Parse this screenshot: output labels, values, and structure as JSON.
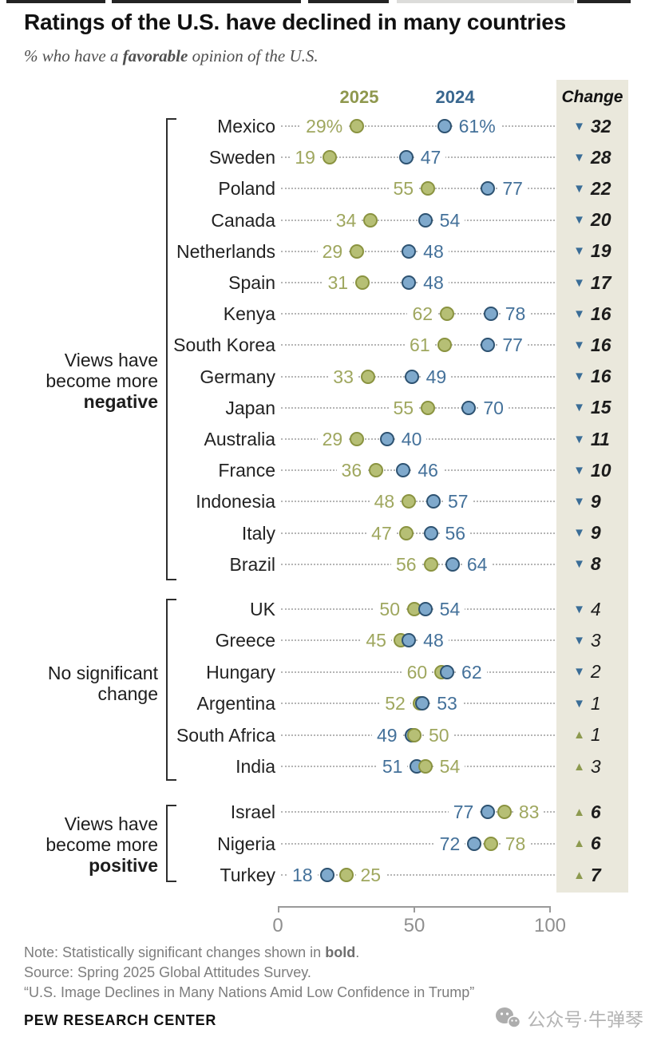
{
  "chart_data": {
    "type": "dumbbell-dot",
    "title": "Ratings of the U.S. have declined in many countries",
    "subtitle": {
      "prefix": "% who have a ",
      "bold": "favorable",
      "suffix": " opinion of the U.S."
    },
    "columns": {
      "y2025": "2025",
      "y2024": "2024",
      "change": "Change"
    },
    "axis": {
      "min": 0,
      "mid": 50,
      "max": 100,
      "labels": {
        "min": "0",
        "mid": "50",
        "max": "100"
      }
    },
    "colors": {
      "dot_2025_fill": "#b6bf75",
      "dot_2025_border": "#8a9340",
      "dot_2024_fill": "#7fa9cc",
      "dot_2024_border": "#2d5271",
      "text_2025": "#9fa75f",
      "text_2024": "#44719a",
      "header_2025": "#8f984e",
      "header_2024": "#39678f",
      "triangle_down": "#3a6d97",
      "triangle_up": "#8d9a4f",
      "change_bg": "#eae8dc"
    },
    "groups": [
      {
        "label": {
          "lines": [
            "Views have",
            "become more"
          ],
          "bold_line": "negative"
        },
        "rows": [
          {
            "country": "Mexico",
            "y2025": 29,
            "y2024": 61,
            "y2025_label": "29%",
            "y2024_label": "61%",
            "change": 32,
            "direction": "down",
            "significant": true
          },
          {
            "country": "Sweden",
            "y2025": 19,
            "y2024": 47,
            "change": 28,
            "direction": "down",
            "significant": true
          },
          {
            "country": "Poland",
            "y2025": 55,
            "y2024": 77,
            "change": 22,
            "direction": "down",
            "significant": true
          },
          {
            "country": "Canada",
            "y2025": 34,
            "y2024": 54,
            "change": 20,
            "direction": "down",
            "significant": true
          },
          {
            "country": "Netherlands",
            "y2025": 29,
            "y2024": 48,
            "change": 19,
            "direction": "down",
            "significant": true
          },
          {
            "country": "Spain",
            "y2025": 31,
            "y2024": 48,
            "change": 17,
            "direction": "down",
            "significant": true
          },
          {
            "country": "Kenya",
            "y2025": 62,
            "y2024": 78,
            "change": 16,
            "direction": "down",
            "significant": true
          },
          {
            "country": "South Korea",
            "y2025": 61,
            "y2024": 77,
            "change": 16,
            "direction": "down",
            "significant": true
          },
          {
            "country": "Germany",
            "y2025": 33,
            "y2024": 49,
            "change": 16,
            "direction": "down",
            "significant": true
          },
          {
            "country": "Japan",
            "y2025": 55,
            "y2024": 70,
            "change": 15,
            "direction": "down",
            "significant": true
          },
          {
            "country": "Australia",
            "y2025": 29,
            "y2024": 40,
            "change": 11,
            "direction": "down",
            "significant": true
          },
          {
            "country": "France",
            "y2025": 36,
            "y2024": 46,
            "change": 10,
            "direction": "down",
            "significant": true
          },
          {
            "country": "Indonesia",
            "y2025": 48,
            "y2024": 57,
            "change": 9,
            "direction": "down",
            "significant": true
          },
          {
            "country": "Italy",
            "y2025": 47,
            "y2024": 56,
            "change": 9,
            "direction": "down",
            "significant": true
          },
          {
            "country": "Brazil",
            "y2025": 56,
            "y2024": 64,
            "change": 8,
            "direction": "down",
            "significant": true
          }
        ]
      },
      {
        "label": {
          "lines": [
            "No significant",
            "change"
          ],
          "bold_line": ""
        },
        "rows": [
          {
            "country": "UK",
            "y2025": 50,
            "y2024": 54,
            "change": 4,
            "direction": "down",
            "significant": false
          },
          {
            "country": "Greece",
            "y2025": 45,
            "y2024": 48,
            "change": 3,
            "direction": "down",
            "significant": false
          },
          {
            "country": "Hungary",
            "y2025": 60,
            "y2024": 62,
            "change": 2,
            "direction": "down",
            "significant": false
          },
          {
            "country": "Argentina",
            "y2025": 52,
            "y2024": 53,
            "change": 1,
            "direction": "down",
            "significant": false
          },
          {
            "country": "South Africa",
            "y2025": 50,
            "y2024": 49,
            "change": 1,
            "direction": "up",
            "significant": false
          },
          {
            "country": "India",
            "y2025": 54,
            "y2024": 51,
            "change": 3,
            "direction": "up",
            "significant": false
          }
        ]
      },
      {
        "label": {
          "lines": [
            "Views have",
            "become more"
          ],
          "bold_line": "positive"
        },
        "rows": [
          {
            "country": "Israel",
            "y2025": 83,
            "y2024": 77,
            "change": 6,
            "direction": "up",
            "significant": true
          },
          {
            "country": "Nigeria",
            "y2025": 78,
            "y2024": 72,
            "change": 6,
            "direction": "up",
            "significant": true
          },
          {
            "country": "Turkey",
            "y2025": 25,
            "y2024": 18,
            "change": 7,
            "direction": "up",
            "significant": true
          }
        ]
      }
    ]
  },
  "notes": {
    "note_prefix": "Note: Statistically significant changes shown in ",
    "note_bold": "bold",
    "note_suffix": ".",
    "source": "Source: Spring 2025 Global Attitudes Survey.",
    "quote": "“U.S. Image Declines in Many Nations Amid Low Confidence in Trump”"
  },
  "footer": {
    "brand": "PEW RESEARCH CENTER"
  },
  "watermark": {
    "text": "公众号·牛弹琴"
  }
}
